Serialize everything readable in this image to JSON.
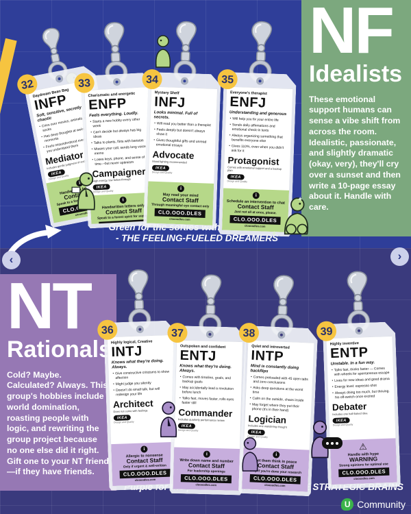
{
  "page": {
    "nav_prev": "‹",
    "nav_next": "›"
  },
  "colors": {
    "top_bg": "#2F3E99",
    "bottom_bg": "#3A3A7D",
    "nf_panel": "#7CA87E",
    "nt_panel": "#9678B4",
    "nf_footer": "#B6D889",
    "nt_footer": "#C7AEDD",
    "badge": "#F6C440"
  },
  "nf_section": {
    "code": "NF",
    "label": "Idealists",
    "description": "These emotional support humans can sense a vibe shift from across the room. Idealistic, passionate, and slightly dramatic (okay, very), they'll cry over a sunset and then write a 10-page essay about it. Handle with care.",
    "caption_line1": "Green for the softies with chaotic hearts",
    "caption_line2": "- THE FEELING-FUELED DREAMERS"
  },
  "nt_section": {
    "code": "NT",
    "label": "Rationals",
    "description": "Cold? Maybe. Calculated? Always. This group's hobbies include world domination, roasting people with logic, and rewriting the group project because no one else did it right. Gift one to your NT friend—if they have friends.",
    "caption": "Purple for the powerful overthinkers - THE STRATEGIC BRAINS"
  },
  "shared": {
    "logo": "IKEA",
    "logo_tagline": "Design and Quality",
    "barcode_text": "CLO.OOO.DLES",
    "website": "cloooodles.com"
  },
  "brand": {
    "initial": "U",
    "name": "Community"
  },
  "tags": [
    {
      "number": "32",
      "group": "nf",
      "label": "Daydream Bean Bag",
      "name": "INFP",
      "tagline": "Soft, sensitive, secretly chaotic",
      "bullets": [
        "Cries over movies, animals, and lost socks",
        "Has deep thoughts at weird moments",
        "Feels misunderstood even when you understand them"
      ],
      "role": "Mediator",
      "role_tagline": "Includes gentle judgment of society",
      "footer": {
        "icon": "info-icon",
        "line1": "Handwritten letters only",
        "main": "Contact Staff",
        "line2": "Speak to a forest spirit for support"
      }
    },
    {
      "number": "33",
      "group": "nf",
      "label": "Charismatic and energetic",
      "name": "ENFP",
      "tagline": "Feels everything. Loudly.",
      "bullets": [
        "Starts a new hobby every other week",
        "Can't decide but always has big ideas",
        "Talks to plants, flirts with baristas",
        "Misses your call, sends long voice memo",
        "Loses keys, phone, and sense of time—but never optimism"
      ],
      "role": "Campaigner",
      "role_tagline": "High energy, low follow-through",
      "footer": {
        "icon": "info-icon",
        "line1": "Handwritten letters only",
        "main": "Contact Staff",
        "line2": "Speak to a forest spirit for support"
      }
    },
    {
      "number": "34",
      "group": "nf",
      "label": "Mystery Shelf",
      "name": "INFJ",
      "tagline": "Looks minimal. Full of secrets.",
      "bullets": [
        "Will read you better than a therapist",
        "Feels deeply but doesn't always show it",
        "Gives thoughtful gifts and unread emotional essays"
      ],
      "role": "Advocate",
      "role_tagline": "Mood lighting recommended",
      "footer": {
        "icon": "info-icon",
        "line1": "May read your mind",
        "main": "Contact Staff",
        "line2": "Through meaningful eye contact only"
      }
    },
    {
      "number": "35",
      "group": "nf",
      "label": "Everyone's therapist",
      "name": "ENFJ",
      "tagline": "Understanding and generous",
      "bullets": [
        "Will help you fix your entire life",
        "Sends daily affirmations and emotional check-in texts",
        "Always organizing something that benefits everyone else",
        "Gives 110%, even when you didn't ask for it"
      ],
      "role": "Protagonist",
      "role_tagline": "Comes with emotional support and a backup plan",
      "footer": {
        "icon": "info-icon",
        "line1": "Schedule an intervention to chat",
        "main": "Contact Staff",
        "line2": "Just not all at once, please."
      }
    },
    {
      "number": "36",
      "group": "nt",
      "label": "Highly logical, Creative",
      "name": "INTJ",
      "tagline": "Knows what they're doing. Always.",
      "bullets": [
        "Give constructive criticisms to show affection",
        "Might judge you silently",
        "Doesn't do small talk, but will redesign your life"
      ],
      "role": "Architect",
      "role_tagline": "Does not come with feelings",
      "footer": {
        "icon": "info-icon",
        "line1": "Allergic to nonsense",
        "main": "Contact Staff",
        "line2": "Only if urgent & well-written"
      }
    },
    {
      "number": "37",
      "group": "nt",
      "label": "Outspoken and confident",
      "name": "ENTJ",
      "tagline": "Knows what they're doing. Always.",
      "bullets": [
        "Comes with timeline, goals, and backup goals",
        "May accidentally lead a revolution before lunch",
        "Talks fast, moves faster, rolls eyes faster still"
      ],
      "role": "Commander",
      "role_tagline": "Includes quarterly performance review",
      "footer": {
        "icon": "info-icon",
        "line1": "Write down name and number",
        "main": "Contact Staff",
        "line2": "For leadership openings"
      }
    },
    {
      "number": "38",
      "group": "nt",
      "label": "Quiet and introverted",
      "name": "INTP",
      "tagline": "Mind is constantly doing backflips",
      "bullets": [
        "Comes preloaded with 45 open tabs and zero conclusions",
        "Asks deep questions at the worst time",
        "Calm on the outside, chaos inside",
        "May forget where they put their phone (it's in their hand)"
      ],
      "role": "Logician",
      "role_tagline": "Includes one wandering thought",
      "footer": {
        "icon": "info-icon",
        "line1": "Let them think in peace",
        "main": "Contact Staff",
        "line2": "Only if you're done your research"
      }
    },
    {
      "number": "39",
      "group": "nt",
      "label": "Highly inventive",
      "name": "ENTP",
      "tagline": "Unstable. In a fun way.",
      "bullets": [
        "Talks fast, thinks faster — Comes with wheels for spontaneous escape",
        "Lives for new ideas and good drama",
        "Energy level: espresso shot",
        "Always doing too much, but thriving. No off-switch once excited"
      ],
      "role": "Debater",
      "role_tagline": "Includes one half-baked idea",
      "footer": {
        "icon": "warning-icon",
        "line1": "Handle with hype",
        "main": "WARNING",
        "line2": "Strong opinions for optimal use"
      }
    }
  ]
}
